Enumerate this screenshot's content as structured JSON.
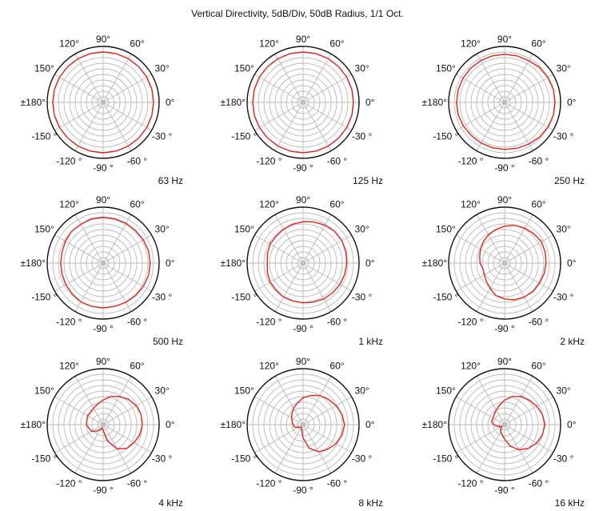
{
  "figure": {
    "title": "Vertical Directivity, 5dB/Div, 50dB Radius, 1/1 Oct."
  },
  "chart_data": {
    "type": "polar",
    "title": "Vertical Directivity, 5dB/Div, 50dB Radius, 1/1 Oct.",
    "radial_range_db": [
      -50,
      0
    ],
    "radial_division_db": 5,
    "angular_grid_deg": 30,
    "grid": true,
    "angle_labels": [
      {
        "angle": 0,
        "label": "0°"
      },
      {
        "angle": 30,
        "label": "30°"
      },
      {
        "angle": 60,
        "label": "60°"
      },
      {
        "angle": 90,
        "label": "90°"
      },
      {
        "angle": 120,
        "label": "120°"
      },
      {
        "angle": 150,
        "label": "150°"
      },
      {
        "angle": 180,
        "label": "±180°"
      },
      {
        "angle": -150,
        "label": "-150 °"
      },
      {
        "angle": -120,
        "label": "-120 °"
      },
      {
        "angle": -90,
        "label": "-90 °"
      },
      {
        "angle": -60,
        "label": "-60 °"
      },
      {
        "angle": -30,
        "label": "-30 °"
      }
    ],
    "series_color": "#e0241b",
    "angles_deg": [
      0,
      15,
      30,
      45,
      60,
      75,
      90,
      105,
      120,
      135,
      150,
      165,
      180,
      195,
      210,
      225,
      240,
      255,
      270,
      285,
      300,
      315,
      330,
      345
    ],
    "plots": [
      {
        "frequency": "63 Hz",
        "db": [
          -5,
          -5,
          -5,
          -5,
          -5,
          -5,
          -5,
          -5,
          -5,
          -5,
          -5,
          -5,
          -5,
          -5,
          -5,
          -5,
          -5,
          -5,
          -5,
          -5,
          -5,
          -5,
          -5,
          -5
        ]
      },
      {
        "frequency": "125 Hz",
        "db": [
          -5,
          -5,
          -5,
          -5,
          -5,
          -5,
          -5,
          -5,
          -5,
          -5,
          -5,
          -5,
          -5,
          -5,
          -5,
          -5,
          -5,
          -5,
          -5,
          -5,
          -5,
          -5,
          -5,
          -5
        ]
      },
      {
        "frequency": "250 Hz",
        "db": [
          -5,
          -5,
          -5.5,
          -6,
          -7,
          -7,
          -7,
          -7,
          -7,
          -7,
          -7,
          -7,
          -7,
          -7,
          -7.5,
          -8,
          -8,
          -8,
          -8,
          -7.5,
          -7,
          -6,
          -5.5,
          -5
        ]
      },
      {
        "frequency": "500 Hz",
        "db": [
          -8,
          -8,
          -8.5,
          -9,
          -9,
          -9,
          -9,
          -9,
          -10,
          -10,
          -11,
          -12,
          -12,
          -12,
          -11.5,
          -11,
          -10,
          -10,
          -10,
          -10,
          -9.5,
          -9,
          -8.5,
          -8
        ]
      },
      {
        "frequency": "1 kHz",
        "db": [
          -11,
          -10.5,
          -10,
          -10,
          -11,
          -12,
          -13,
          -14,
          -15,
          -16,
          -16,
          -17,
          -18,
          -17,
          -16,
          -16,
          -15,
          -15,
          -14.5,
          -14,
          -13,
          -12.5,
          -12,
          -11.5
        ]
      },
      {
        "frequency": "2 kHz",
        "db": [
          -13,
          -12.5,
          -12,
          -13,
          -14,
          -15,
          -17,
          -19,
          -21,
          -23,
          -25,
          -27,
          -28,
          -30,
          -29,
          -27,
          -24,
          -20,
          -18,
          -16,
          -15,
          -14,
          -14,
          -13.5
        ]
      },
      {
        "frequency": "4 kHz",
        "db": [
          -15,
          -15,
          -16,
          -18,
          -21,
          -24,
          -28,
          -31,
          -33,
          -34,
          -34,
          -35,
          -35,
          -37,
          -38,
          -42,
          -45,
          -47,
          -45,
          -35,
          -25,
          -20,
          -18,
          -16
        ]
      },
      {
        "frequency": "8 kHz",
        "db": [
          -13,
          -14,
          -16,
          -18,
          -20,
          -23,
          -26,
          -30,
          -33,
          -36,
          -38,
          -40,
          -41,
          -42,
          -45,
          -47,
          -47,
          -45,
          -38,
          -28,
          -22,
          -19,
          -16,
          -14
        ]
      },
      {
        "frequency": "16 kHz",
        "db": [
          -14,
          -15,
          -17,
          -19,
          -21,
          -24,
          -28,
          -32,
          -35,
          -37,
          -38,
          -38,
          -40,
          -44,
          -47,
          -45,
          -43,
          -41,
          -37,
          -30,
          -24,
          -20,
          -17,
          -15
        ]
      }
    ]
  }
}
